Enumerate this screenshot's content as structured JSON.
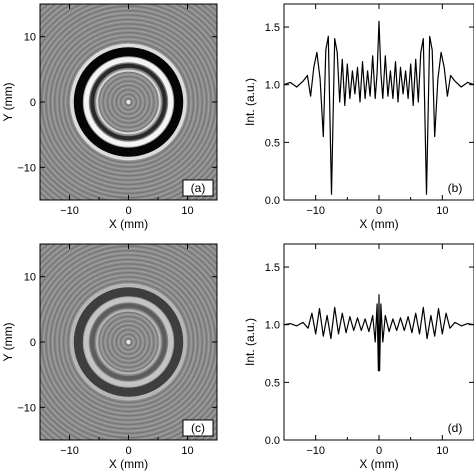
{
  "chart_data": [
    {
      "id": "a",
      "type": "heatmap",
      "panel_label": "(a)",
      "xlabel": "X (mm)",
      "ylabel": "Y (mm)",
      "xlim": [
        -15,
        15
      ],
      "ylim": [
        -15,
        15
      ],
      "xticks": [
        -10,
        0,
        10
      ],
      "yticks": [
        -10,
        0,
        10
      ],
      "colormap": "grayscale",
      "ring": {
        "center": [
          0,
          0
        ],
        "radius_mm": 7.5,
        "contrast": 1.0
      },
      "fringes": "concentric fine rings"
    },
    {
      "id": "b",
      "type": "line",
      "panel_label": "(b)",
      "xlabel": "X (mm)",
      "ylabel": "Int. (a.u.)",
      "xlim": [
        -15,
        15
      ],
      "ylim": [
        0.0,
        1.7
      ],
      "xticks": [
        -10,
        0,
        10
      ],
      "yticks": [
        0.0,
        0.5,
        1.0,
        1.5
      ],
      "series": [
        {
          "x": [
            -15,
            -14,
            -13,
            -12,
            -11.3,
            -10.8,
            -10.3,
            -9.8,
            -9.3,
            -8.8,
            -8.4,
            -8.0,
            -7.5,
            -7.0,
            -6.6,
            -6.2,
            -5.8,
            -5.4,
            -5.0,
            -4.6,
            -4.2,
            -3.8,
            -3.4,
            -3.0,
            -2.6,
            -2.2,
            -1.8,
            -1.4,
            -1.0,
            -0.6,
            -0.3,
            0.0,
            0.3,
            0.6,
            1.0,
            1.4,
            1.8,
            2.2,
            2.6,
            3.0,
            3.4,
            3.8,
            4.2,
            4.6,
            5.0,
            5.4,
            5.8,
            6.2,
            6.6,
            7.0,
            7.5,
            8.0,
            8.4,
            8.8,
            9.3,
            9.8,
            10.3,
            10.8,
            11.3,
            12,
            13,
            14,
            15
          ],
          "y": [
            1.0,
            1.02,
            0.98,
            1.03,
            1.08,
            0.9,
            1.15,
            1.28,
            1.05,
            0.55,
            1.3,
            1.42,
            0.05,
            1.4,
            1.28,
            0.85,
            1.22,
            0.82,
            1.18,
            0.88,
            1.12,
            0.92,
            1.15,
            0.85,
            1.2,
            0.88,
            1.12,
            0.9,
            1.25,
            0.88,
            1.1,
            1.55,
            1.1,
            0.88,
            1.25,
            0.9,
            1.12,
            0.88,
            1.2,
            0.85,
            1.15,
            0.92,
            1.12,
            0.88,
            1.18,
            0.82,
            1.22,
            0.85,
            1.28,
            1.4,
            0.05,
            1.42,
            1.3,
            0.55,
            1.05,
            1.28,
            1.15,
            0.9,
            1.08,
            1.03,
            0.98,
            1.02,
            1.0
          ]
        }
      ]
    },
    {
      "id": "c",
      "type": "heatmap",
      "panel_label": "(c)",
      "xlabel": "X (mm)",
      "ylabel": "Y (mm)",
      "xlim": [
        -15,
        15
      ],
      "ylim": [
        -15,
        15
      ],
      "xticks": [
        -10,
        0,
        10
      ],
      "yticks": [
        -10,
        0,
        10
      ],
      "colormap": "grayscale",
      "ring": {
        "center": [
          0,
          0
        ],
        "radius_mm": 7.5,
        "contrast": 0.45
      },
      "fringes": "concentric fine rings"
    },
    {
      "id": "d",
      "type": "line",
      "panel_label": "(d)",
      "xlabel": "X (mm)",
      "ylabel": "Int. (a.u.)",
      "xlim": [
        -15,
        15
      ],
      "ylim": [
        0.0,
        1.7
      ],
      "xticks": [
        -10,
        0,
        10
      ],
      "yticks": [
        0.0,
        0.5,
        1.0,
        1.5
      ],
      "series": [
        {
          "x": [
            -15,
            -14,
            -13,
            -12,
            -11.2,
            -10.6,
            -10.0,
            -9.4,
            -8.8,
            -8.2,
            -7.6,
            -7.0,
            -6.4,
            -5.8,
            -5.2,
            -4.6,
            -4.0,
            -3.4,
            -2.8,
            -2.2,
            -1.6,
            -1.0,
            -0.6,
            -0.3,
            -0.1,
            0.0,
            0.1,
            0.3,
            0.6,
            1.0,
            1.6,
            2.2,
            2.8,
            3.4,
            4.0,
            4.6,
            5.2,
            5.8,
            6.4,
            7.0,
            7.6,
            8.2,
            8.8,
            9.4,
            10.0,
            10.6,
            11.2,
            12,
            13,
            14,
            15
          ],
          "y": [
            1.0,
            1.01,
            0.99,
            1.02,
            0.97,
            1.1,
            0.92,
            1.14,
            0.9,
            1.08,
            0.88,
            1.15,
            0.92,
            1.1,
            0.93,
            1.07,
            0.95,
            1.06,
            0.95,
            1.05,
            0.94,
            1.08,
            0.85,
            1.18,
            0.6,
            1.26,
            0.6,
            1.18,
            0.85,
            1.08,
            0.94,
            1.05,
            0.95,
            1.06,
            0.95,
            1.07,
            0.93,
            1.1,
            0.92,
            1.15,
            0.88,
            1.08,
            0.9,
            1.14,
            0.92,
            1.1,
            0.97,
            1.02,
            0.99,
            1.01,
            1.0
          ]
        }
      ]
    }
  ]
}
